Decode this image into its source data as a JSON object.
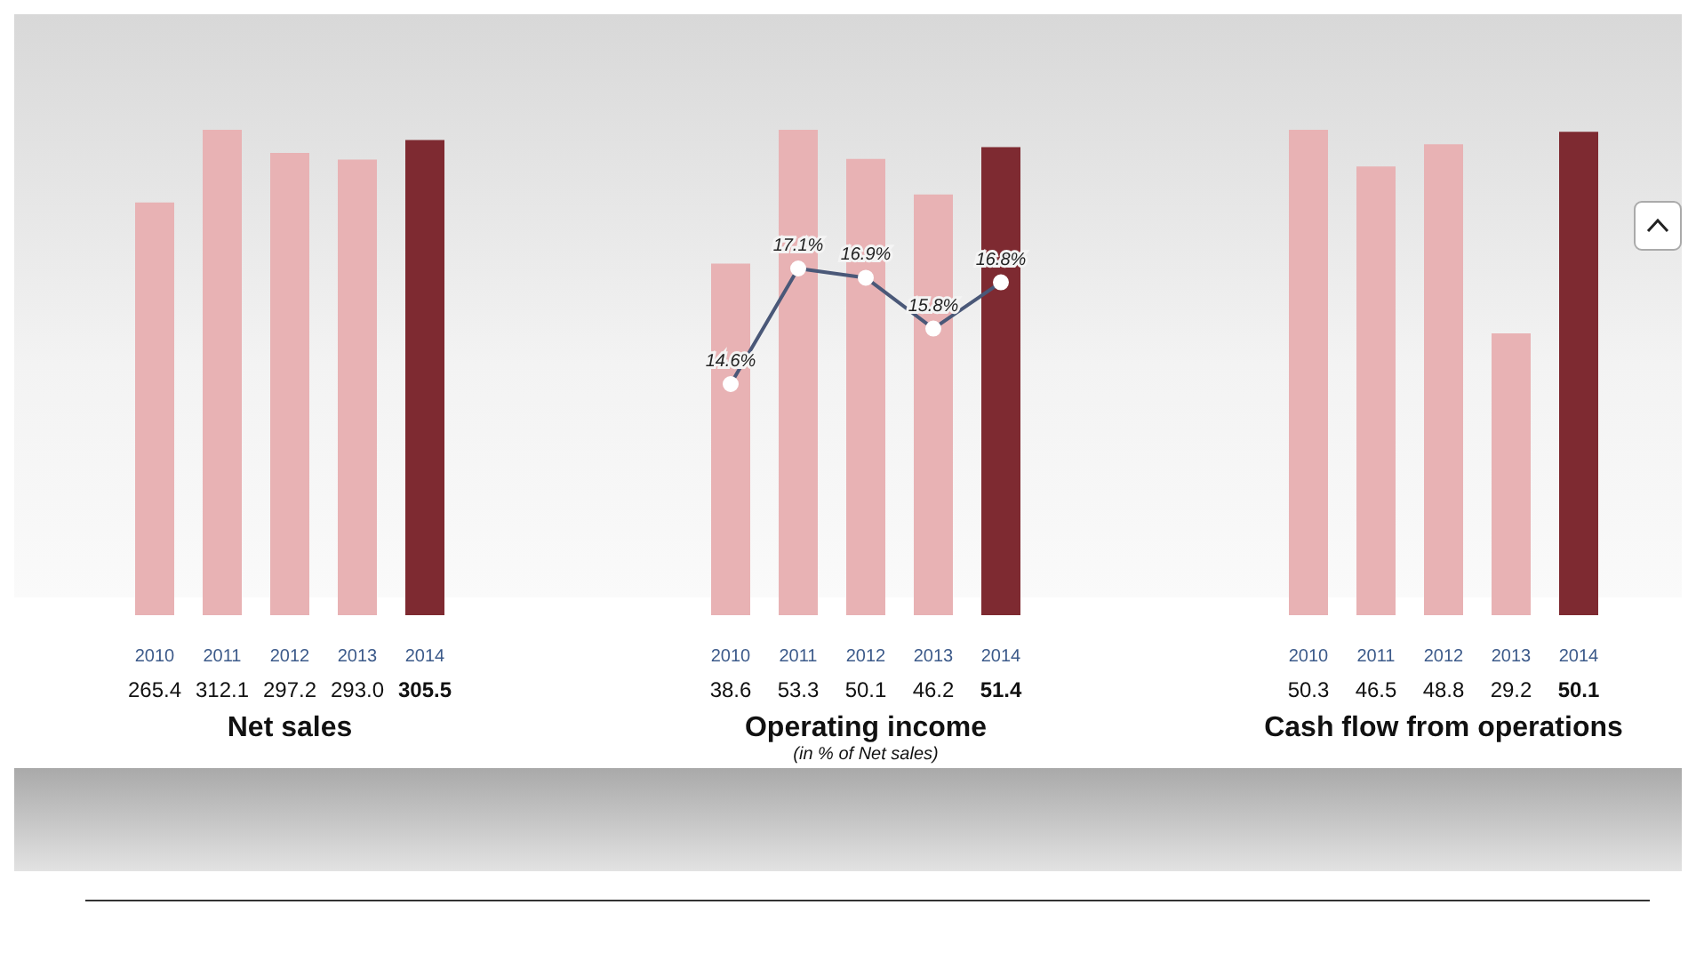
{
  "chart_data": [
    {
      "type": "bar",
      "title": "Net sales",
      "categories": [
        "2010",
        "2011",
        "2012",
        "2013",
        "2014"
      ],
      "series": [
        {
          "values": [
            265.4,
            312.1,
            297.2,
            293.0,
            305.5
          ],
          "colors": [
            "#e8b2b4",
            "#e8b2b4",
            "#e8b2b4",
            "#e8b2b4",
            "#7e2a31"
          ],
          "value_labels": [
            "265.4",
            "312.1",
            "297.2",
            "293.0",
            "305.5"
          ]
        }
      ]
    },
    {
      "type": "bar",
      "title": "Operating income",
      "subtitle": "(in % of Net sales)",
      "categories": [
        "2010",
        "2011",
        "2012",
        "2013",
        "2014"
      ],
      "series": [
        {
          "values": [
            38.6,
            53.3,
            50.1,
            46.2,
            51.4
          ],
          "colors": [
            "#e8b2b4",
            "#e8b2b4",
            "#e8b2b4",
            "#e8b2b4",
            "#7e2a31"
          ],
          "value_labels": [
            "38.6",
            "53.3",
            "50.1",
            "46.2",
            "51.4"
          ]
        },
        {
          "type": "line",
          "axis": "y2",
          "color": "#4a5878",
          "marker": "circle",
          "values": [
            14.6,
            17.1,
            16.9,
            15.8,
            16.8
          ],
          "value_labels": [
            "14.6%",
            "17.1%",
            "16.9%",
            "15.8%",
            "16.8%"
          ]
        }
      ]
    },
    {
      "type": "bar",
      "title": "Cash flow from operations",
      "categories": [
        "2010",
        "2011",
        "2012",
        "2013",
        "2014"
      ],
      "series": [
        {
          "values": [
            50.3,
            46.5,
            48.8,
            29.2,
            50.1
          ],
          "colors": [
            "#e8b2b4",
            "#e8b2b4",
            "#e8b2b4",
            "#e8b2b4",
            "#7e2a31"
          ],
          "value_labels": [
            "50.3",
            "46.5",
            "48.8",
            "29.2",
            "50.1"
          ]
        }
      ]
    }
  ]
}
